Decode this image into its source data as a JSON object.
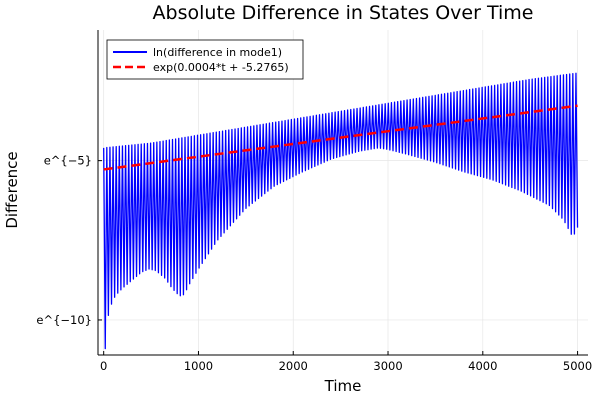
{
  "chart_data": {
    "type": "line",
    "title": "Absolute Difference in States Over Time",
    "xlabel": "Time",
    "ylabel": "Difference",
    "xlim": [
      -60,
      5110
    ],
    "ylim": [
      -11.1,
      -0.9
    ],
    "x_ticks": [
      {
        "value": 0,
        "label": "0"
      },
      {
        "value": 1000,
        "label": "1000"
      },
      {
        "value": 2000,
        "label": "2000"
      },
      {
        "value": 3000,
        "label": "3000"
      },
      {
        "value": 4000,
        "label": "4000"
      },
      {
        "value": 5000,
        "label": "5000"
      }
    ],
    "y_ticks": [
      {
        "value": -5,
        "label": "e^{−5}"
      },
      {
        "value": -10,
        "label": "e^{−10}"
      }
    ],
    "grid": true,
    "legend_position": "top-left",
    "series": [
      {
        "name": "ln(difference in mode1)",
        "color": "#0000ff",
        "style": "solid",
        "oscillation_period": 33,
        "upper_envelope": {
          "x": [
            0,
            500,
            1000,
            1500,
            2000,
            2500,
            3000,
            3500,
            4000,
            4500,
            5000
          ],
          "y": [
            -4.6,
            -4.45,
            -4.2,
            -3.95,
            -3.7,
            -3.45,
            -3.2,
            -2.95,
            -2.7,
            -2.45,
            -2.25
          ]
        },
        "lower_envelope": {
          "x": [
            20,
            40,
            60,
            100,
            150,
            200,
            300,
            400,
            480,
            550,
            650,
            720,
            800,
            850,
            900,
            1000,
            1200,
            1500,
            1800,
            2100,
            2400,
            2700,
            2900,
            3000,
            3200,
            3500,
            3800,
            4100,
            4400,
            4700,
            4850,
            4950,
            5000
          ],
          "y": [
            -10.9,
            -10.0,
            -9.7,
            -9.35,
            -9.15,
            -9.0,
            -8.75,
            -8.5,
            -8.4,
            -8.45,
            -8.7,
            -9.0,
            -9.25,
            -9.2,
            -8.9,
            -8.4,
            -7.5,
            -6.5,
            -5.8,
            -5.35,
            -4.95,
            -4.7,
            -4.6,
            -4.65,
            -4.8,
            -5.05,
            -5.35,
            -5.6,
            -5.95,
            -6.4,
            -6.85,
            -7.4,
            -7.1
          ]
        }
      },
      {
        "name": "exp(0.0004*t + -5.2765)",
        "color": "#ff0000",
        "style": "dashed",
        "x": [
          0,
          5000
        ],
        "y": [
          -5.2765,
          -3.2765
        ]
      }
    ]
  }
}
